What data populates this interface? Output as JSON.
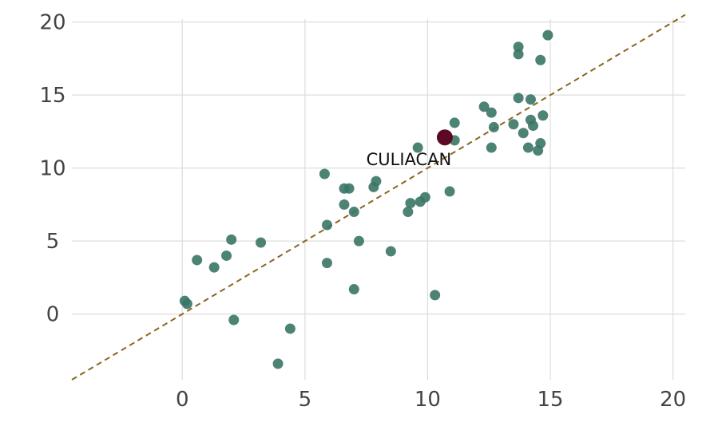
{
  "chart_data": {
    "type": "scatter",
    "title": "",
    "xlabel": "",
    "ylabel": "",
    "xlim": [
      -4.5,
      20.5
    ],
    "ylim": [
      -4.5,
      20.2
    ],
    "grid": true,
    "xticks": [
      0,
      5,
      10,
      15,
      20
    ],
    "yticks": [
      0,
      5,
      10,
      15,
      20
    ],
    "reference_line": {
      "style": "dashed",
      "color": "#8b6520",
      "from": [
        -4.5,
        -4.5
      ],
      "to": [
        20.5,
        20.5
      ]
    },
    "point_color": "#3a7566",
    "highlight_color": "#5c0a24",
    "highlight": {
      "label": "CULIACAN",
      "x": 10.7,
      "y": 12.1
    },
    "points": [
      {
        "x": 0.1,
        "y": 0.9
      },
      {
        "x": 0.2,
        "y": 0.7
      },
      {
        "x": 0.6,
        "y": 3.7
      },
      {
        "x": 1.3,
        "y": 3.2
      },
      {
        "x": 1.8,
        "y": 4.0
      },
      {
        "x": 2.0,
        "y": 5.1
      },
      {
        "x": 2.1,
        "y": -0.4
      },
      {
        "x": 3.2,
        "y": 4.9
      },
      {
        "x": 3.9,
        "y": -3.4
      },
      {
        "x": 4.4,
        "y": -1.0
      },
      {
        "x": 5.8,
        "y": 9.6
      },
      {
        "x": 5.9,
        "y": 6.1
      },
      {
        "x": 5.9,
        "y": 3.5
      },
      {
        "x": 6.6,
        "y": 8.6
      },
      {
        "x": 6.6,
        "y": 7.5
      },
      {
        "x": 6.8,
        "y": 8.6
      },
      {
        "x": 7.0,
        "y": 7.0
      },
      {
        "x": 7.0,
        "y": 1.7
      },
      {
        "x": 7.2,
        "y": 5.0
      },
      {
        "x": 7.8,
        "y": 8.7
      },
      {
        "x": 7.9,
        "y": 9.1
      },
      {
        "x": 8.5,
        "y": 4.3
      },
      {
        "x": 9.2,
        "y": 7.0
      },
      {
        "x": 9.3,
        "y": 7.6
      },
      {
        "x": 9.6,
        "y": 11.4
      },
      {
        "x": 9.7,
        "y": 7.7
      },
      {
        "x": 9.9,
        "y": 8.0
      },
      {
        "x": 10.3,
        "y": 1.3
      },
      {
        "x": 10.9,
        "y": 8.4
      },
      {
        "x": 11.1,
        "y": 13.1
      },
      {
        "x": 11.1,
        "y": 11.9
      },
      {
        "x": 12.3,
        "y": 14.2
      },
      {
        "x": 12.6,
        "y": 13.8
      },
      {
        "x": 12.6,
        "y": 11.4
      },
      {
        "x": 12.7,
        "y": 12.8
      },
      {
        "x": 13.5,
        "y": 13.0
      },
      {
        "x": 13.7,
        "y": 18.3
      },
      {
        "x": 13.7,
        "y": 17.8
      },
      {
        "x": 13.7,
        "y": 14.8
      },
      {
        "x": 13.9,
        "y": 12.4
      },
      {
        "x": 14.1,
        "y": 11.4
      },
      {
        "x": 14.2,
        "y": 14.7
      },
      {
        "x": 14.2,
        "y": 13.3
      },
      {
        "x": 14.3,
        "y": 12.9
      },
      {
        "x": 14.5,
        "y": 11.2
      },
      {
        "x": 14.6,
        "y": 17.4
      },
      {
        "x": 14.6,
        "y": 11.7
      },
      {
        "x": 14.7,
        "y": 13.6
      },
      {
        "x": 14.9,
        "y": 19.1
      }
    ]
  }
}
